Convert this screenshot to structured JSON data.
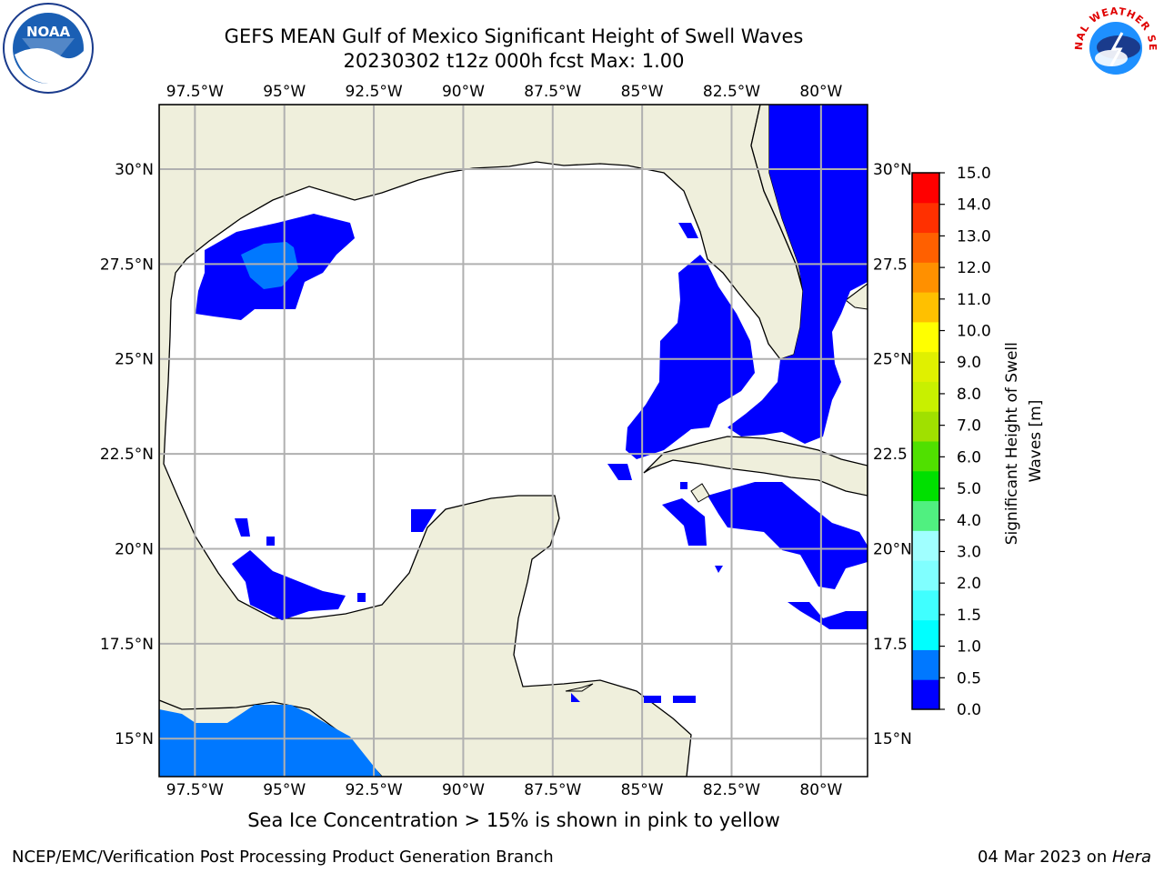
{
  "title": {
    "line1": "GEFS MEAN Gulf of Mexico Significant Height of Swell Waves",
    "line2": "20230302 t12z 000h fcst   Max: 1.00"
  },
  "logos": {
    "noaa": {
      "text": "NOAA",
      "icon": "noaa-logo"
    },
    "nws": {
      "text": "NATIONAL WEATHER SERVICE",
      "icon": "nws-logo"
    }
  },
  "map": {
    "lon_range": [
      -98.5,
      -78.7
    ],
    "lat_range": [
      14,
      31.7
    ],
    "lon_ticks": [
      "97.5°W",
      "95°W",
      "92.5°W",
      "90°W",
      "87.5°W",
      "85°W",
      "82.5°W",
      "80°W"
    ],
    "lat_ticks_left": [
      "30°N",
      "27.5°N",
      "25°N",
      "22.5°N",
      "20°N",
      "17.5°N",
      "15°N"
    ],
    "lat_ticks_right": [
      "30°N",
      "27.5",
      "25°N",
      "22.5",
      "20°N",
      "17.5",
      "15°N"
    ],
    "land_color": "#efefdc",
    "water_color": "#ffffff",
    "grid_color": "#b0b0b0"
  },
  "colorbar": {
    "label": "Significant Height of Swell Waves [m]",
    "ticks": [
      "15.0",
      "14.0",
      "13.0",
      "12.0",
      "11.0",
      "10.0",
      "9.0",
      "8.0",
      "7.0",
      "6.0",
      "5.0",
      "4.0",
      "3.0",
      "2.0",
      "1.5",
      "1.0",
      "0.5",
      "0.0"
    ],
    "colors_bottom_to_top": [
      "#0000ff",
      "#0078ff",
      "#00ffff",
      "#40ffff",
      "#80ffff",
      "#a0ffff",
      "#50f080",
      "#00e000",
      "#50e000",
      "#a0e000",
      "#c8f000",
      "#e0f000",
      "#ffff00",
      "#ffc000",
      "#ff9000",
      "#ff6000",
      "#ff3000",
      "#ff0000"
    ]
  },
  "subnote": "Sea Ice Concentration > 15% is shown in pink to yellow",
  "footer": {
    "left": "NCEP/EMC/Verification Post Processing Product Generation Branch",
    "right_prefix": "04 Mar 2023 on ",
    "right_host": "Hera"
  }
}
